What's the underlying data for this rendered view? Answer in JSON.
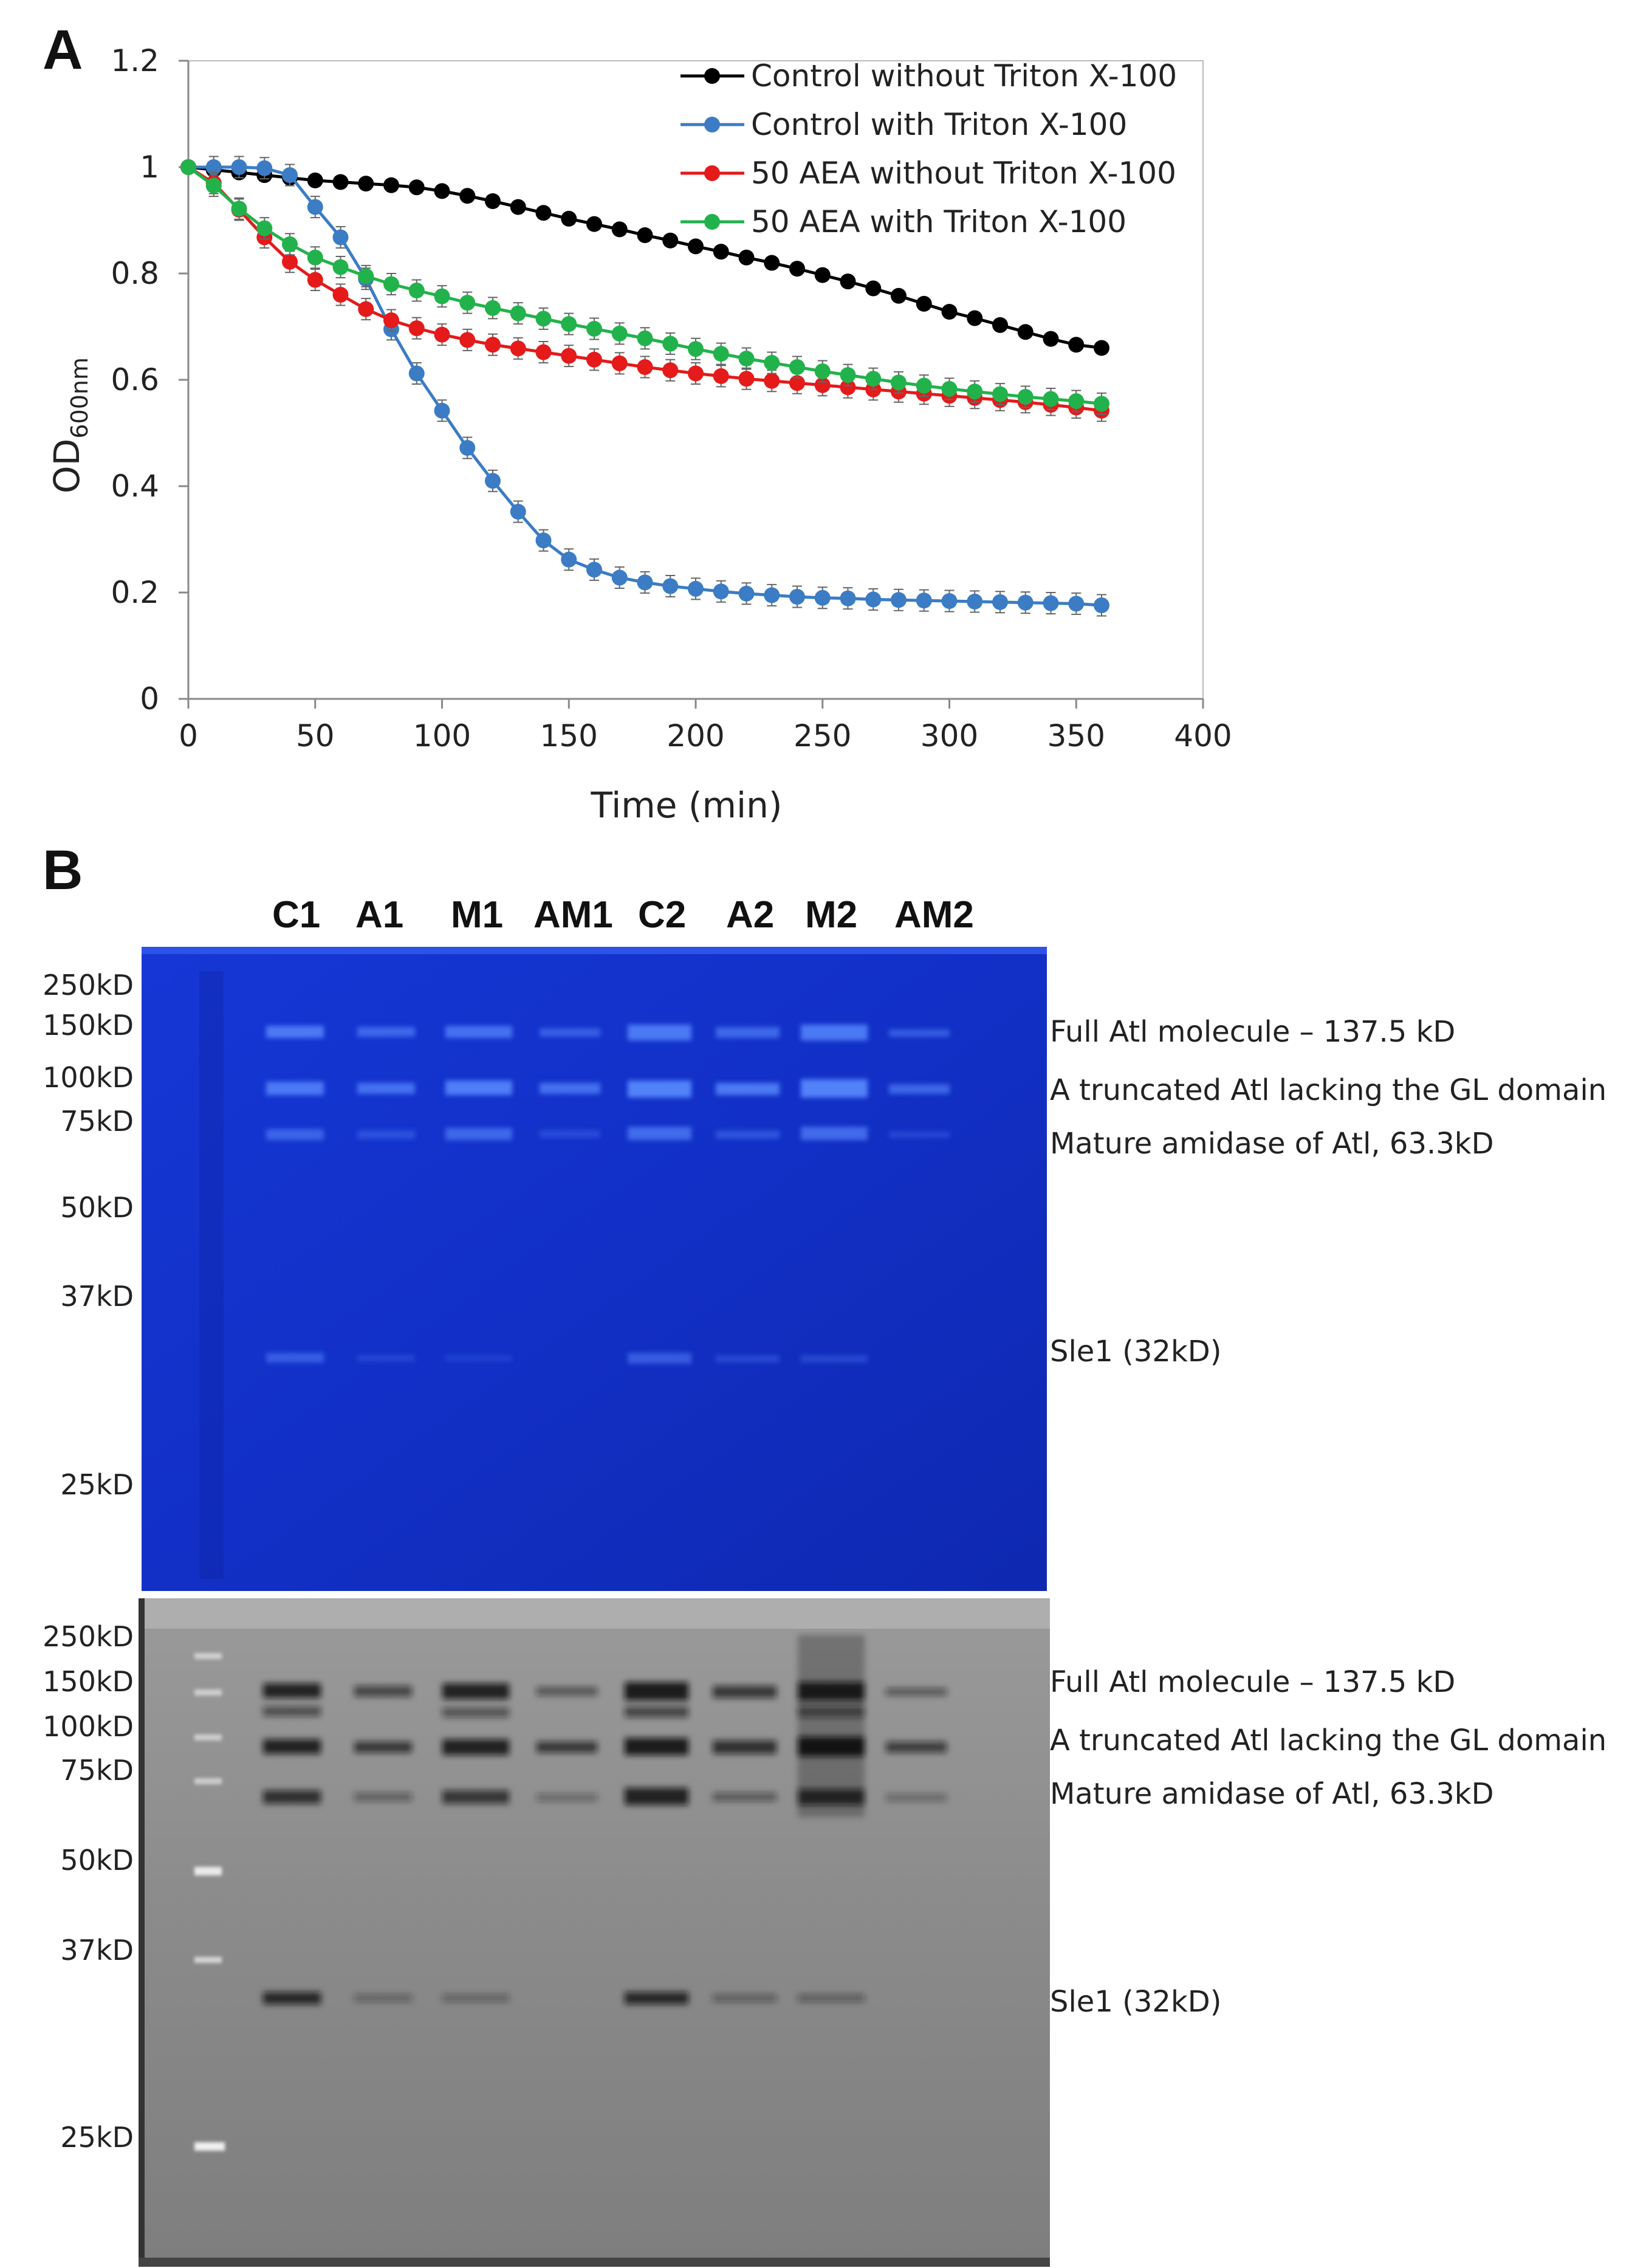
{
  "panel_labels": {
    "a": "A",
    "b": "B"
  },
  "chart_data": {
    "type": "line",
    "title": "",
    "xlabel": "Time (min)",
    "ylabel": "OD",
    "ylabel_sub": "600nm",
    "xlim": [
      0,
      400
    ],
    "ylim": [
      0,
      1.2
    ],
    "xticks": [
      0,
      50,
      100,
      150,
      200,
      250,
      300,
      350,
      400
    ],
    "yticks": [
      0,
      0.2,
      0.4,
      0.6,
      0.8,
      1,
      1.2
    ],
    "xtick_labels": [
      "0",
      "50",
      "100",
      "150",
      "200",
      "250",
      "300",
      "350",
      "400"
    ],
    "ytick_labels": [
      "0",
      "0.2",
      "0.4",
      "0.6",
      "0.8",
      "1",
      "1.2"
    ],
    "legend_position": "top-right",
    "grid": false,
    "x": [
      0,
      10,
      20,
      30,
      40,
      50,
      60,
      70,
      80,
      90,
      100,
      110,
      120,
      130,
      140,
      150,
      160,
      170,
      180,
      190,
      200,
      210,
      220,
      230,
      240,
      250,
      260,
      270,
      280,
      290,
      300,
      310,
      320,
      330,
      340,
      350,
      360
    ],
    "series": [
      {
        "name": "Control without Triton X-100",
        "color": "#000000",
        "error_bars": false,
        "values": [
          1,
          0.995,
          0.99,
          0.985,
          0.98,
          0.975,
          0.972,
          0.969,
          0.966,
          0.962,
          0.955,
          0.946,
          0.936,
          0.925,
          0.914,
          0.903,
          0.893,
          0.883,
          0.872,
          0.862,
          0.851,
          0.841,
          0.83,
          0.82,
          0.809,
          0.797,
          0.785,
          0.772,
          0.758,
          0.743,
          0.728,
          0.716,
          0.703,
          0.69,
          0.677,
          0.666,
          0.66
        ]
      },
      {
        "name": "Control with Triton X-100",
        "color": "#3B7CC4",
        "error_bars": true,
        "values": [
          1,
          1.0,
          1.0,
          0.998,
          0.985,
          0.925,
          0.868,
          0.79,
          0.695,
          0.612,
          0.542,
          0.472,
          0.41,
          0.352,
          0.298,
          0.262,
          0.243,
          0.228,
          0.219,
          0.212,
          0.207,
          0.202,
          0.198,
          0.195,
          0.192,
          0.19,
          0.189,
          0.187,
          0.186,
          0.185,
          0.184,
          0.183,
          0.182,
          0.181,
          0.18,
          0.179,
          0.176
        ]
      },
      {
        "name": "50 AEA without Triton X-100",
        "color": "#E51A1A",
        "error_bars": true,
        "values": [
          1,
          0.97,
          0.92,
          0.868,
          0.822,
          0.788,
          0.76,
          0.733,
          0.712,
          0.697,
          0.685,
          0.675,
          0.666,
          0.659,
          0.652,
          0.645,
          0.638,
          0.631,
          0.624,
          0.618,
          0.612,
          0.607,
          0.602,
          0.598,
          0.594,
          0.59,
          0.586,
          0.582,
          0.578,
          0.574,
          0.57,
          0.566,
          0.562,
          0.558,
          0.553,
          0.548,
          0.542
        ]
      },
      {
        "name": "50 AEA with Triton X-100",
        "color": "#22B24C",
        "error_bars": true,
        "values": [
          1,
          0.965,
          0.922,
          0.885,
          0.855,
          0.83,
          0.812,
          0.795,
          0.78,
          0.768,
          0.757,
          0.745,
          0.735,
          0.725,
          0.715,
          0.705,
          0.696,
          0.687,
          0.678,
          0.668,
          0.658,
          0.649,
          0.64,
          0.632,
          0.624,
          0.616,
          0.609,
          0.602,
          0.595,
          0.589,
          0.583,
          0.578,
          0.573,
          0.568,
          0.564,
          0.56,
          0.555
        ]
      }
    ]
  },
  "gel": {
    "lanes": [
      "C1",
      "A1",
      "M1",
      "AM1",
      "C2",
      "A2",
      "M2",
      "AM2"
    ],
    "top_markers": [
      "250kD",
      "150kD",
      "100kD",
      "75kD",
      "50kD",
      "37kD",
      "25kD"
    ],
    "bottom_markers": [
      "250kD",
      "150kD",
      "100kD",
      "75kD",
      "50kD",
      "37kD",
      "25kD"
    ],
    "band_annotations": [
      "Full Atl molecule – 137.5 kD",
      "A truncated Atl lacking the GL domain",
      "Mature amidase of Atl, 63.3kD",
      "Sle1 (32kD)"
    ],
    "top_gel_color": "#1430C8",
    "bottom_gel_color": "#8c8c8c"
  }
}
